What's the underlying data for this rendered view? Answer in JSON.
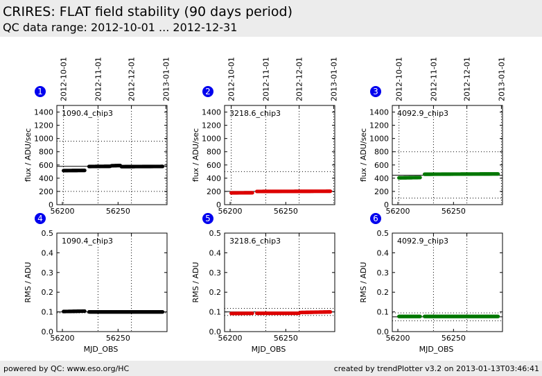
{
  "header": {
    "title": "CRIRES: FLAT field stability (90 days period)",
    "subtitle": "QC data range: 2012-10-01 ... 2012-12-31"
  },
  "footer": {
    "left": "powered by QC: www.eso.org/HC",
    "right": "created by trendPlotter v3.2 on 2013-01-13T03:46:41"
  },
  "colors": {
    "background": "#ffffff",
    "header_bg": "#ececec",
    "panel_badge": "#0000ee",
    "series_black": "#000000",
    "series_red": "#dd0000",
    "series_green": "#007700"
  },
  "chart_data": [
    {
      "type": "scatter",
      "panel": "1",
      "setting": "1090.4_chip3",
      "color": "#000000",
      "xlabel": "",
      "ylabel": "flux / ADU/sec",
      "xlim": [
        56195,
        56294
      ],
      "ylim": [
        0,
        1500
      ],
      "xticks": [
        56200,
        56250
      ],
      "yticks": [
        0,
        200,
        400,
        600,
        800,
        1000,
        1200,
        1400
      ],
      "date_ticks": [
        {
          "mjd": 56201,
          "label": "2012-10-01"
        },
        {
          "mjd": 56232,
          "label": "2012-11-01"
        },
        {
          "mjd": 56262,
          "label": "2012-12-01"
        },
        {
          "mjd": 56293,
          "label": "2013-01-01"
        }
      ],
      "ref_lines": [
        580
      ],
      "dotted_lines": [
        200,
        960
      ],
      "segments": [
        {
          "x0": 56201,
          "x1": 56220,
          "y0": 515,
          "y1": 518
        },
        {
          "x0": 56224,
          "x1": 56243,
          "y0": 577,
          "y1": 580
        },
        {
          "x0": 56244,
          "x1": 56252,
          "y0": 588,
          "y1": 592
        },
        {
          "x0": 56253,
          "x1": 56290,
          "y0": 575,
          "y1": 578
        }
      ]
    },
    {
      "type": "scatter",
      "panel": "2",
      "setting": "3218.6_chip3",
      "color": "#dd0000",
      "xlabel": "",
      "ylabel": "flux / ADU/sec",
      "xlim": [
        56195,
        56294
      ],
      "ylim": [
        0,
        1500
      ],
      "xticks": [
        56200,
        56250
      ],
      "yticks": [
        0,
        200,
        400,
        600,
        800,
        1000,
        1200,
        1400
      ],
      "date_ticks": [
        {
          "mjd": 56201,
          "label": "2012-10-01"
        },
        {
          "mjd": 56232,
          "label": "2012-11-01"
        },
        {
          "mjd": 56262,
          "label": "2012-12-01"
        },
        {
          "mjd": 56293,
          "label": "2013-01-01"
        }
      ],
      "ref_lines": [
        200
      ],
      "dotted_lines": [
        -90,
        500
      ],
      "segments": [
        {
          "x0": 56201,
          "x1": 56220,
          "y0": 178,
          "y1": 180
        },
        {
          "x0": 56224,
          "x1": 56290,
          "y0": 200,
          "y1": 203
        }
      ]
    },
    {
      "type": "scatter",
      "panel": "3",
      "setting": "4092.9_chip3",
      "color": "#007700",
      "xlabel": "",
      "ylabel": "flux / ADU/sec",
      "xlim": [
        56195,
        56294
      ],
      "ylim": [
        0,
        1500
      ],
      "xticks": [
        56200,
        56250
      ],
      "yticks": [
        0,
        200,
        400,
        600,
        800,
        1000,
        1200,
        1400
      ],
      "date_ticks": [
        {
          "mjd": 56201,
          "label": "2012-10-01"
        },
        {
          "mjd": 56232,
          "label": "2012-11-01"
        },
        {
          "mjd": 56262,
          "label": "2012-12-01"
        },
        {
          "mjd": 56293,
          "label": "2013-01-01"
        }
      ],
      "ref_lines": [
        445
      ],
      "dotted_lines": [
        100,
        800
      ],
      "segments": [
        {
          "x0": 56201,
          "x1": 56220,
          "y0": 405,
          "y1": 410
        },
        {
          "x0": 56224,
          "x1": 56290,
          "y0": 460,
          "y1": 465
        }
      ]
    },
    {
      "type": "scatter",
      "panel": "4",
      "setting": "1090.4_chip3",
      "color": "#000000",
      "xlabel": "MJD_OBS",
      "ylabel": "RMS / ADU",
      "xlim": [
        56195,
        56294
      ],
      "ylim": [
        0,
        0.5
      ],
      "xticks": [
        56200,
        56250
      ],
      "yticks": [
        0.0,
        0.1,
        0.2,
        0.3,
        0.4,
        0.5
      ],
      "date_ticks": [
        {
          "mjd": 56232,
          "label": ""
        },
        {
          "mjd": 56262,
          "label": ""
        }
      ],
      "ref_lines": [
        0.1
      ],
      "dotted_lines": [
        0.095
      ],
      "segments": [
        {
          "x0": 56201,
          "x1": 56220,
          "y0": 0.102,
          "y1": 0.104
        },
        {
          "x0": 56224,
          "x1": 56290,
          "y0": 0.1,
          "y1": 0.1
        }
      ]
    },
    {
      "type": "scatter",
      "panel": "5",
      "setting": "3218.6_chip3",
      "color": "#dd0000",
      "xlabel": "MJD_OBS",
      "ylabel": "RMS / ADU",
      "xlim": [
        56195,
        56294
      ],
      "ylim": [
        0,
        0.5
      ],
      "xticks": [
        56200,
        56250
      ],
      "yticks": [
        0.0,
        0.1,
        0.2,
        0.3,
        0.4,
        0.5
      ],
      "date_ticks": [
        {
          "mjd": 56232,
          "label": ""
        },
        {
          "mjd": 56262,
          "label": ""
        }
      ],
      "ref_lines": [
        0.1
      ],
      "dotted_lines": [
        0.082,
        0.118
      ],
      "segments": [
        {
          "x0": 56201,
          "x1": 56220,
          "y0": 0.092,
          "y1": 0.093
        },
        {
          "x0": 56224,
          "x1": 56262,
          "y0": 0.093,
          "y1": 0.093
        },
        {
          "x0": 56263,
          "x1": 56290,
          "y0": 0.097,
          "y1": 0.1
        }
      ]
    },
    {
      "type": "scatter",
      "panel": "6",
      "setting": "4092.9_chip3",
      "color": "#007700",
      "xlabel": "MJD_OBS",
      "ylabel": "RMS / ADU",
      "xlim": [
        56195,
        56294
      ],
      "ylim": [
        0,
        0.5
      ],
      "xticks": [
        56200,
        56250
      ],
      "yticks": [
        0.0,
        0.1,
        0.2,
        0.3,
        0.4,
        0.5
      ],
      "date_ticks": [
        {
          "mjd": 56232,
          "label": ""
        },
        {
          "mjd": 56262,
          "label": ""
        }
      ],
      "ref_lines": [
        0.075
      ],
      "dotted_lines": [
        0.055,
        0.095
      ],
      "segments": [
        {
          "x0": 56201,
          "x1": 56220,
          "y0": 0.077,
          "y1": 0.077
        },
        {
          "x0": 56224,
          "x1": 56290,
          "y0": 0.077,
          "y1": 0.077
        }
      ]
    }
  ]
}
